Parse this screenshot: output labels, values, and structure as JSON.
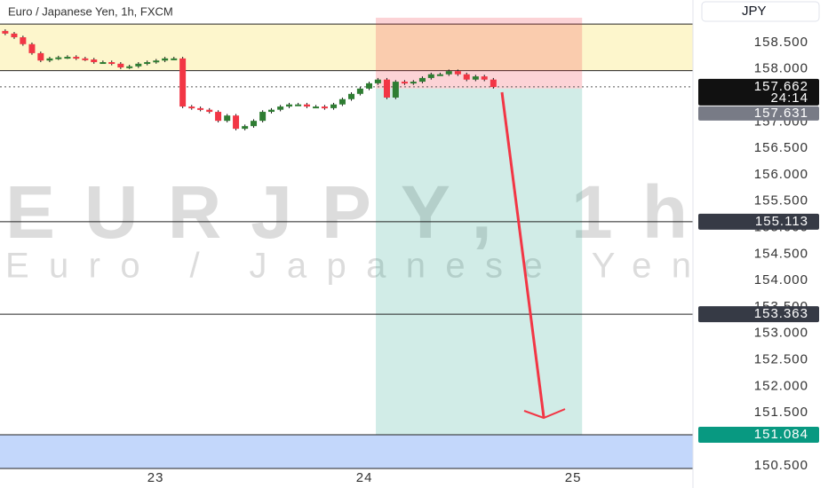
{
  "chart_data": {
    "type": "candlestick",
    "title": "Euro / Japanese Yen, 1h, FXCM",
    "watermark": "EURJPY, 1h",
    "watermark_subtitle": "Euro / Japanese Yen",
    "currency_button": "JPY",
    "up_color": "#2e7d32",
    "down_color": "#f23645",
    "x": [
      22.28,
      22.323,
      22.365,
      22.408,
      22.45,
      22.493,
      22.535,
      22.578,
      22.62,
      22.663,
      22.705,
      22.748,
      22.79,
      22.833,
      22.875,
      22.918,
      22.96,
      23.003,
      23.045,
      23.088,
      23.13,
      23.173,
      23.215,
      23.258,
      23.3,
      23.343,
      23.385,
      23.428,
      23.47,
      23.513,
      23.555,
      23.598,
      23.64,
      23.683,
      23.725,
      23.768,
      23.81,
      23.853,
      23.895,
      23.938,
      23.98,
      24.023,
      24.065,
      24.108,
      24.15,
      24.193,
      24.235,
      24.278,
      24.32,
      24.363,
      24.405,
      24.448,
      24.49,
      24.533,
      24.575,
      24.618
    ],
    "open": [
      158.72,
      158.67,
      158.6,
      158.47,
      158.3,
      158.16,
      158.2,
      158.22,
      158.23,
      158.2,
      158.18,
      158.13,
      158.13,
      158.1,
      158.03,
      158.05,
      158.1,
      158.13,
      158.16,
      158.2,
      158.2,
      157.29,
      157.26,
      157.23,
      157.19,
      157.02,
      157.12,
      156.87,
      156.92,
      157.02,
      157.19,
      157.23,
      157.29,
      157.33,
      157.33,
      157.29,
      157.29,
      157.26,
      157.33,
      157.43,
      157.53,
      157.63,
      157.73,
      157.8,
      157.46,
      157.76,
      157.73,
      157.76,
      157.83,
      157.9,
      157.9,
      157.96,
      157.9,
      157.8,
      157.86,
      157.8
    ],
    "high": [
      158.75,
      158.7,
      158.63,
      158.5,
      158.33,
      158.23,
      158.25,
      158.26,
      158.26,
      158.23,
      158.21,
      158.16,
      158.16,
      158.13,
      158.08,
      158.13,
      158.16,
      158.19,
      158.23,
      158.23,
      158.23,
      157.32,
      157.29,
      157.26,
      157.22,
      157.15,
      157.15,
      156.95,
      157.05,
      157.22,
      157.26,
      157.32,
      157.36,
      157.36,
      157.36,
      157.32,
      157.32,
      157.36,
      157.46,
      157.56,
      157.66,
      157.76,
      157.83,
      157.83,
      157.79,
      157.79,
      157.79,
      157.86,
      157.93,
      157.93,
      157.99,
      157.99,
      157.93,
      157.89,
      157.89,
      157.83
    ],
    "low": [
      158.64,
      158.57,
      158.44,
      158.27,
      158.13,
      158.13,
      158.17,
      158.19,
      158.17,
      158.15,
      158.1,
      158.1,
      158.07,
      158.0,
      158.0,
      158.02,
      158.07,
      158.1,
      158.13,
      158.17,
      157.26,
      157.23,
      157.2,
      157.16,
      156.99,
      156.99,
      156.84,
      156.84,
      156.89,
      156.99,
      157.16,
      157.2,
      157.26,
      157.3,
      157.26,
      157.26,
      157.23,
      157.23,
      157.3,
      157.4,
      157.5,
      157.6,
      157.7,
      157.43,
      157.43,
      157.7,
      157.7,
      157.73,
      157.8,
      157.87,
      157.87,
      157.87,
      157.77,
      157.77,
      157.77,
      157.63
    ],
    "close": [
      158.67,
      158.6,
      158.47,
      158.3,
      158.16,
      158.2,
      158.22,
      158.23,
      158.2,
      158.18,
      158.13,
      158.13,
      158.1,
      158.03,
      158.05,
      158.1,
      158.13,
      158.16,
      158.2,
      158.2,
      157.29,
      157.26,
      157.23,
      157.19,
      157.02,
      157.12,
      156.87,
      156.92,
      157.02,
      157.19,
      157.23,
      157.29,
      157.33,
      157.33,
      157.29,
      157.29,
      157.26,
      157.33,
      157.43,
      157.53,
      157.63,
      157.73,
      157.8,
      157.46,
      157.76,
      157.73,
      157.76,
      157.83,
      157.9,
      157.9,
      157.96,
      157.9,
      157.8,
      157.86,
      157.8,
      157.66
    ],
    "xlim": [
      22.255,
      25.574
    ],
    "xticks": [
      23,
      24,
      25
    ],
    "ylim": [
      150.446,
      159.305
    ],
    "yticks": [
      {
        "value": 150.5,
        "label": "150.500"
      },
      {
        "value": 151,
        "label": "151.000"
      },
      {
        "value": 151.5,
        "label": "151.500"
      },
      {
        "value": 152,
        "label": "152.000"
      },
      {
        "value": 152.5,
        "label": "152.500"
      },
      {
        "value": 153,
        "label": "153.000"
      },
      {
        "value": 153.5,
        "label": "153.500"
      },
      {
        "value": 154,
        "label": "154.000"
      },
      {
        "value": 154.5,
        "label": "154.500"
      },
      {
        "value": 155,
        "label": "155.000"
      },
      {
        "value": 155.5,
        "label": "155.500"
      },
      {
        "value": 156,
        "label": "156.000"
      },
      {
        "value": 156.5,
        "label": "156.500"
      },
      {
        "value": 157,
        "label": "157.000"
      },
      {
        "value": 157.5,
        "label": "157.500"
      },
      {
        "value": 158,
        "label": "158.000"
      },
      {
        "value": 158.5,
        "label": "158.500"
      }
    ],
    "zones": [
      {
        "from": 157.97,
        "to": 158.85,
        "color": "#fdf6cc"
      },
      {
        "from": 150.446,
        "to": 151.084,
        "color": "#c3d7fb"
      }
    ],
    "levels": [
      155.113,
      153.363,
      151.084
    ],
    "last_price": 157.662,
    "countdown": "24:14",
    "position": {
      "x_start": 24.055,
      "x_end": 25.043,
      "entry": 157.631,
      "stop": 158.97,
      "target": 151.084
    }
  }
}
